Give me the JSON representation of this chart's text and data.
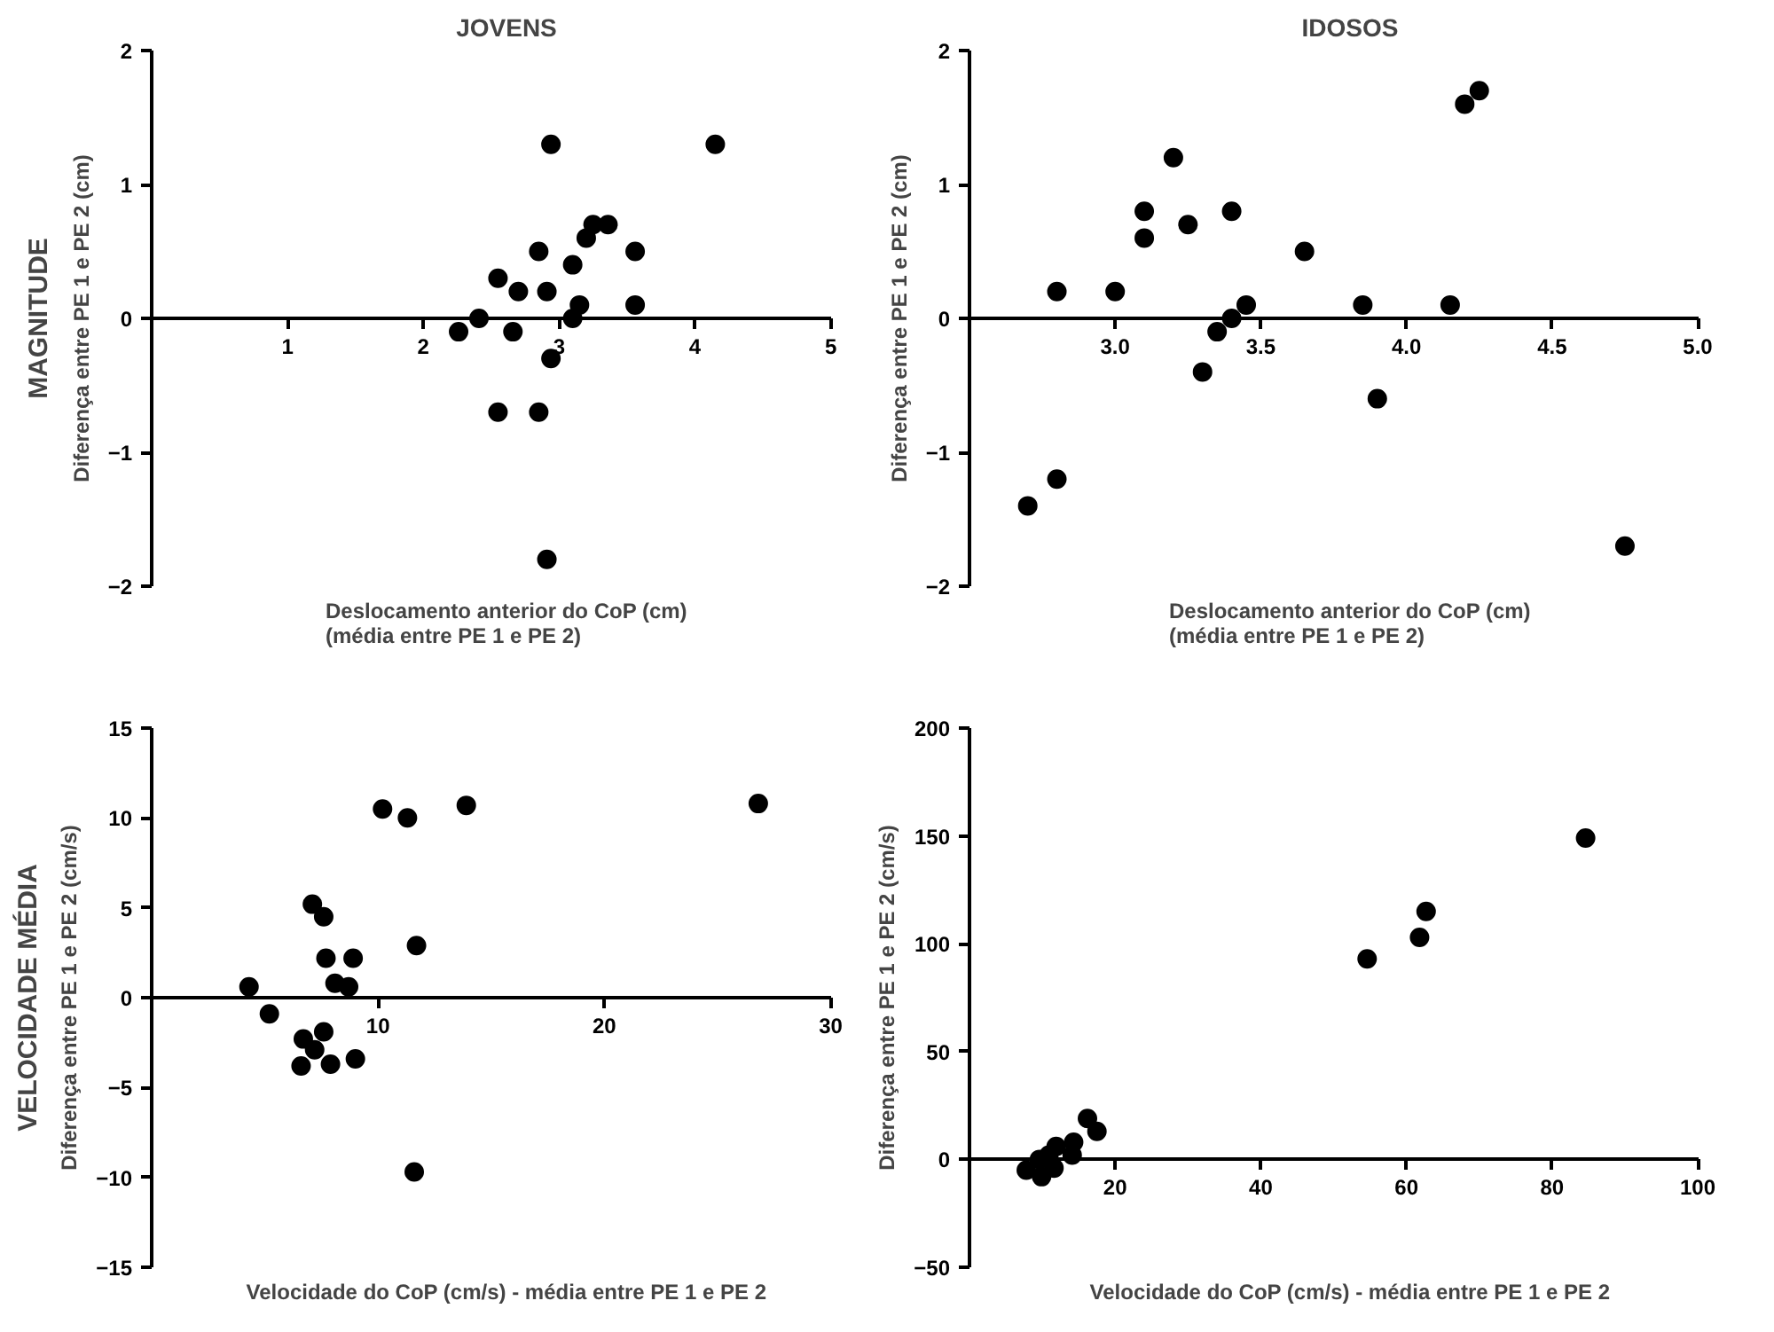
{
  "chart_data": [
    {
      "type": "scatter",
      "title": "JOVENS",
      "annotations": [
        "MAGNITUDE"
      ],
      "xlabel": "Deslocamento anterior do CoP (cm)\n(média entre PE 1 e PE 2)",
      "ylabel": "Diferença entre PE 1 e PE 2 (cm)",
      "marker": "circle",
      "color": "#000000",
      "xlim": [
        0,
        5
      ],
      "xticks": [
        1,
        2,
        3,
        4,
        5
      ],
      "ylim": [
        -2,
        2
      ],
      "yticks": [
        -2,
        -1,
        0,
        1,
        2
      ],
      "x": [
        2.26,
        2.41,
        2.55,
        2.55,
        2.66,
        2.7,
        2.85,
        2.85,
        2.91,
        2.91,
        2.94,
        2.94,
        3.1,
        3.1,
        3.15,
        3.2,
        3.25,
        3.36,
        3.56,
        3.56,
        4.15
      ],
      "values": [
        -0.1,
        0,
        0.3,
        -0.7,
        -0.1,
        0.2,
        0.5,
        -0.7,
        0.2,
        -1.8,
        1.3,
        -0.3,
        0.4,
        0,
        0.1,
        0.6,
        0.7,
        0.7,
        0.5,
        0.1,
        1.3
      ]
    },
    {
      "type": "scatter",
      "title": "IDOSOS",
      "xlabel": "Deslocamento anterior do CoP (cm)\n(média entre PE 1 e PE 2)",
      "ylabel": "Diferença entre PE 1 e PE 2 (cm)",
      "marker": "circle",
      "color": "#000000",
      "xlim": [
        2.5,
        5.0
      ],
      "xticks": [
        {
          "value": 3,
          "label": "3.0"
        },
        3.5,
        {
          "value": 4,
          "label": "4.0"
        },
        4.5,
        {
          "value": 5,
          "label": "5.0"
        }
      ],
      "ylim": [
        -2,
        2
      ],
      "yticks": [
        -2,
        -1,
        0,
        1,
        2
      ],
      "x": [
        2.7,
        2.8,
        2.8,
        3.0,
        3.1,
        3.1,
        3.2,
        3.25,
        3.3,
        3.35,
        3.4,
        3.4,
        3.45,
        3.65,
        3.85,
        3.9,
        4.15,
        4.2,
        4.25,
        4.75
      ],
      "values": [
        -1.4,
        -1.2,
        0.2,
        0.2,
        0.8,
        0.6,
        1.2,
        0.7,
        -0.4,
        -0.1,
        0,
        0.8,
        0.1,
        0.5,
        0.1,
        -0.6,
        0.1,
        1.6,
        1.7,
        -1.7
      ]
    },
    {
      "type": "scatter",
      "annotations": [
        "VELOCIDADE MÉDIA"
      ],
      "xlabel": "Velocidade do CoP (cm/s) - média entre PE 1 e PE 2",
      "ylabel": "Diferença entre PE 1 e PE 2 (cm/s)",
      "marker": "circle",
      "color": "#000000",
      "xlim": [
        0,
        30
      ],
      "xticks": [
        10,
        20,
        30
      ],
      "ylim": [
        -15,
        15
      ],
      "yticks": [
        -15,
        -10,
        -5,
        0,
        5,
        10,
        15
      ],
      "x": [
        4.3,
        5.2,
        7.1,
        7.6,
        7.7,
        8.1,
        8.7,
        8.9,
        6.7,
        7.2,
        7.6,
        6.6,
        7.9,
        9.0,
        10.2,
        11.3,
        11.7,
        11.6,
        13.9,
        26.8
      ],
      "values": [
        0.6,
        -0.9,
        5.2,
        4.5,
        2.2,
        0.8,
        0.6,
        2.2,
        -2.3,
        -2.9,
        -1.9,
        -3.8,
        -3.7,
        -3.4,
        10.5,
        10.0,
        2.9,
        -9.7,
        10.7,
        10.8
      ]
    },
    {
      "type": "scatter",
      "xlabel": "Velocidade do CoP (cm/s) - média entre PE 1 e PE 2",
      "ylabel": "Diferença entre PE 1 e PE 2 (cm/s)",
      "marker": "circle",
      "color": "#000000",
      "xlim": [
        0,
        100
      ],
      "xticks": [
        20,
        40,
        60,
        80,
        100
      ],
      "ylim": [
        -50,
        200
      ],
      "yticks": [
        -50,
        0,
        50,
        100,
        150,
        200
      ],
      "x": [
        54.6,
        61.8,
        62.7,
        84.6,
        16.2,
        17.5,
        14.3,
        14.1,
        11.9,
        11.6,
        9.9,
        9.6,
        7.8,
        10.9
      ],
      "values": [
        93,
        103,
        115,
        149,
        19,
        13,
        8,
        2,
        6,
        -4,
        -8,
        0,
        -5,
        2
      ]
    }
  ]
}
